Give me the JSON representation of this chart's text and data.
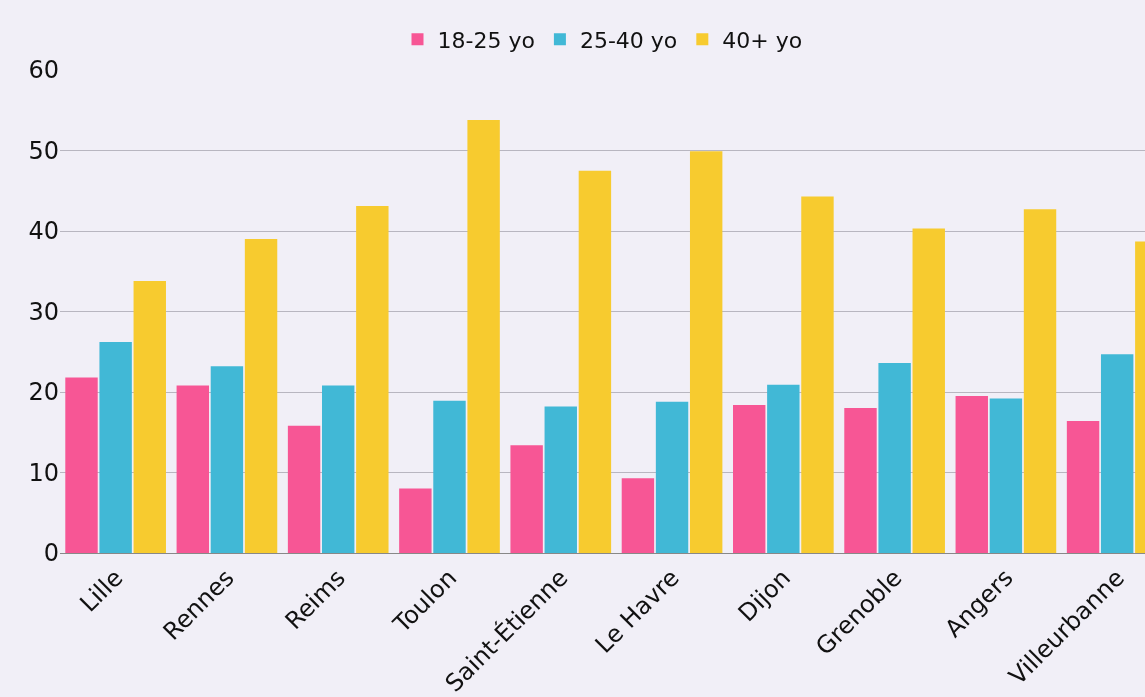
{
  "chart_data": {
    "type": "bar",
    "categories": [
      "Lille",
      "Rennes",
      "Reims",
      "Toulon",
      "Saint-Étienne",
      "Le Havre",
      "Dijon",
      "Grenoble",
      "Angers",
      "Villeurbanne"
    ],
    "series": [
      {
        "name": "18-25 yo",
        "color": "#f75695",
        "values": [
          21.8,
          20.8,
          15.8,
          8.0,
          13.4,
          9.3,
          18.4,
          18.0,
          19.5,
          16.4
        ]
      },
      {
        "name": "25-40 yo",
        "color": "#41b8d6",
        "values": [
          26.2,
          23.2,
          20.8,
          18.9,
          18.2,
          18.8,
          20.9,
          23.6,
          19.2,
          24.7
        ]
      },
      {
        "name": "40+ yo",
        "color": "#f7cb2f",
        "values": [
          33.8,
          39.0,
          43.1,
          53.8,
          47.5,
          49.9,
          44.3,
          40.3,
          42.7,
          38.7
        ]
      }
    ],
    "ylim": [
      0,
      60
    ],
    "yticks": [
      0,
      10,
      20,
      30,
      40,
      50,
      60
    ],
    "grid": "y",
    "legend": "top"
  }
}
